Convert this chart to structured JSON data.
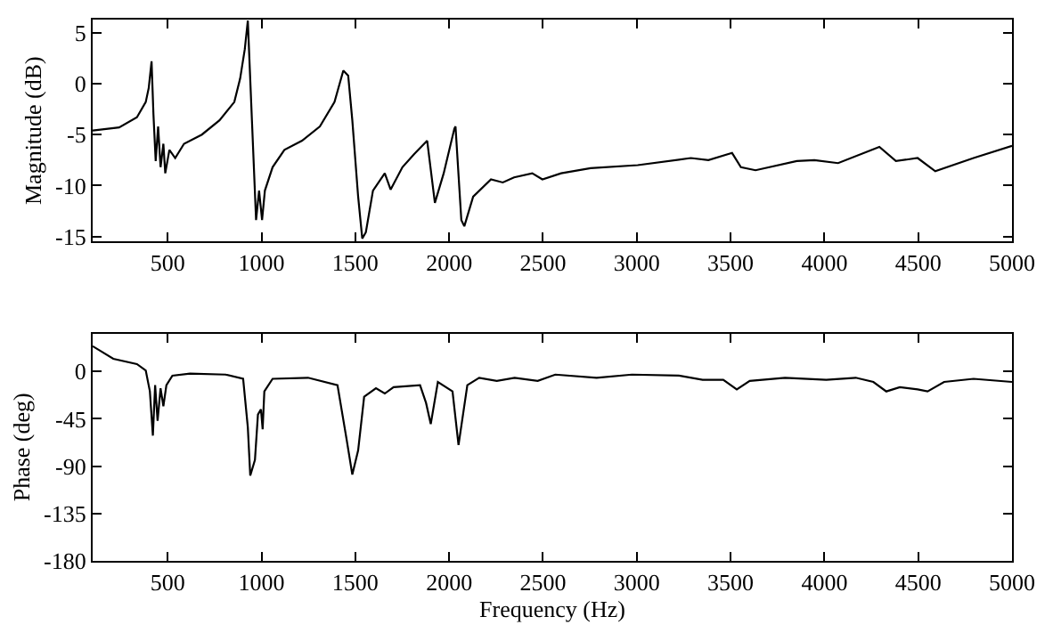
{
  "chart_data": [
    {
      "type": "line",
      "ylabel": "Magnitude (dB)",
      "xlim": [
        100,
        5000
      ],
      "ylim": [
        -15.5,
        6.3
      ],
      "xticks": [
        500,
        1000,
        1500,
        2000,
        2500,
        3000,
        3500,
        4000,
        4500,
        5000
      ],
      "yticks": [
        -15,
        -10,
        -5,
        0,
        5
      ],
      "series": [
        {
          "color": "#000000",
          "x": [
            100,
            241,
            336,
            383,
            399,
            414,
            424,
            436,
            449,
            462,
            477,
            487,
            509,
            540,
            587,
            682,
            776,
            855,
            886,
            911,
            927,
            949,
            971,
            987,
            1003,
            1018,
            1059,
            1122,
            1216,
            1311,
            1389,
            1436,
            1462,
            1484,
            1515,
            1537,
            1556,
            1594,
            1657,
            1688,
            1751,
            1814,
            1883,
            1924,
            1971,
            2028,
            2034,
            2065,
            2081,
            2128,
            2223,
            2286,
            2346,
            2443,
            2497,
            2597,
            2754,
            3005,
            3288,
            3382,
            3508,
            3555,
            3633,
            3853,
            3947,
            4073,
            4293,
            4381,
            4497,
            4591,
            4795,
            5000
          ],
          "values": [
            -4.6,
            -4.3,
            -3.3,
            -1.8,
            -0.4,
            2.2,
            -3.0,
            -7.6,
            -4.2,
            -8.2,
            -5.9,
            -8.8,
            -6.5,
            -7.3,
            -5.9,
            -5.0,
            -3.6,
            -1.8,
            0.5,
            3.4,
            6.2,
            -3.6,
            -13.4,
            -10.5,
            -13.4,
            -10.5,
            -8.2,
            -6.5,
            -5.6,
            -4.2,
            -1.8,
            1.3,
            0.8,
            -3.6,
            -11.1,
            -15.2,
            -14.6,
            -10.5,
            -8.8,
            -10.4,
            -8.2,
            -6.9,
            -5.6,
            -11.7,
            -8.8,
            -4.4,
            -4.2,
            -13.4,
            -14.0,
            -11.1,
            -9.4,
            -9.7,
            -9.2,
            -8.8,
            -9.4,
            -8.8,
            -8.3,
            -8.0,
            -7.3,
            -7.5,
            -6.8,
            -8.2,
            -8.5,
            -7.6,
            -7.5,
            -7.8,
            -6.2,
            -7.6,
            -7.3,
            -8.6,
            -7.3,
            -6.1
          ]
        }
      ]
    },
    {
      "type": "line",
      "xlabel": "Frequency (Hz)",
      "ylabel": "Phase (deg)",
      "xlim": [
        100,
        5000
      ],
      "ylim": [
        -180,
        36
      ],
      "xticks": [
        500,
        1000,
        1500,
        2000,
        2500,
        3000,
        3500,
        4000,
        4500,
        5000
      ],
      "yticks": [
        -180,
        -135,
        -90,
        -45,
        0
      ],
      "series": [
        {
          "color": "#000000",
          "x": [
            100,
            210,
            336,
            383,
            405,
            421,
            433,
            446,
            462,
            477,
            493,
            525,
            619,
            808,
            902,
            927,
            940,
            965,
            981,
            997,
            1006,
            1015,
            1059,
            1248,
            1405,
            1453,
            1484,
            1515,
            1547,
            1610,
            1657,
            1704,
            1845,
            1877,
            1902,
            1940,
            2018,
            2050,
            2097,
            2160,
            2254,
            2349,
            2472,
            2566,
            2786,
            2974,
            3225,
            3351,
            3461,
            3533,
            3602,
            3790,
            4010,
            4167,
            4261,
            4330,
            4402,
            4497,
            4550,
            4638,
            4795,
            5000
          ],
          "values": [
            24,
            12,
            7,
            1,
            -19,
            -61,
            -13,
            -47,
            -16,
            -33,
            -13,
            -4,
            -2,
            -3,
            -7,
            -53,
            -99,
            -84,
            -41,
            -36,
            -55,
            -19,
            -7,
            -6,
            -13,
            -64,
            -98,
            -75,
            -24,
            -16,
            -21,
            -15,
            -13,
            -30,
            -50,
            -10,
            -19,
            -70,
            -13,
            -6,
            -9,
            -6,
            -9,
            -3,
            -6,
            -3,
            -4,
            -8,
            -8,
            -17,
            -9,
            -6,
            -8,
            -6,
            -10,
            -19,
            -15,
            -17,
            -19,
            -10,
            -7,
            -10
          ]
        }
      ]
    }
  ]
}
